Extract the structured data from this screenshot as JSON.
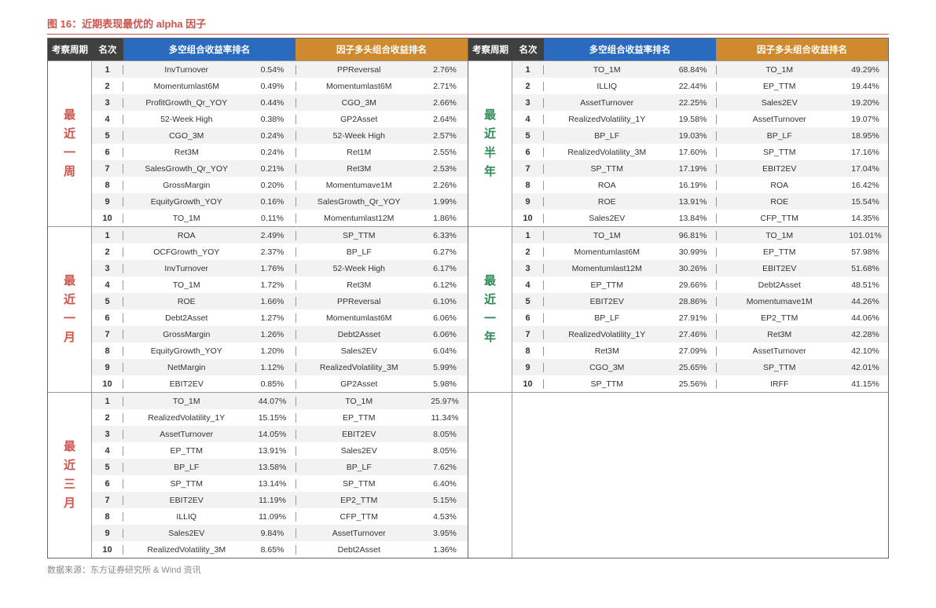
{
  "title_prefix": "图 16：",
  "title_text": "近期表现最优的 alpha 因子",
  "source_label": "数据来源：",
  "source_text": "东方证券研究所 & Wind 资讯",
  "headers": {
    "period": "考察周期",
    "rank": "名次",
    "ls": "多空组合收益率排名",
    "long": "因子多头组合收益排名"
  },
  "colors": {
    "accent_red": "#d0534e",
    "header_dark": "#404040",
    "header_blue": "#2a6bbf",
    "header_orange": "#d08a2e",
    "period_green": "#2e8b57",
    "row_odd": "#f2f2f2",
    "row_even": "#ffffff",
    "grid": "#999999",
    "source_grey": "#888888"
  },
  "left": [
    {
      "period_label": "最近一周",
      "period_color_class": "period-red",
      "rows": [
        {
          "rank": "1",
          "ls_f": "InvTurnover",
          "ls_v": "0.54%",
          "lg_f": "PPReversal",
          "lg_v": "2.76%"
        },
        {
          "rank": "2",
          "ls_f": "Momentumlast6M",
          "ls_v": "0.49%",
          "lg_f": "Momentumlast6M",
          "lg_v": "2.71%"
        },
        {
          "rank": "3",
          "ls_f": "ProfitGrowth_Qr_YOY",
          "ls_v": "0.44%",
          "lg_f": "CGO_3M",
          "lg_v": "2.66%"
        },
        {
          "rank": "4",
          "ls_f": "52-Week High",
          "ls_v": "0.38%",
          "lg_f": "GP2Asset",
          "lg_v": "2.64%"
        },
        {
          "rank": "5",
          "ls_f": "CGO_3M",
          "ls_v": "0.24%",
          "lg_f": "52-Week High",
          "lg_v": "2.57%"
        },
        {
          "rank": "6",
          "ls_f": "Ret3M",
          "ls_v": "0.24%",
          "lg_f": "Ret1M",
          "lg_v": "2.55%"
        },
        {
          "rank": "7",
          "ls_f": "SalesGrowth_Qr_YOY",
          "ls_v": "0.21%",
          "lg_f": "Ret3M",
          "lg_v": "2.53%"
        },
        {
          "rank": "8",
          "ls_f": "GrossMargin",
          "ls_v": "0.20%",
          "lg_f": "Momentumave1M",
          "lg_v": "2.26%"
        },
        {
          "rank": "9",
          "ls_f": "EquityGrowth_YOY",
          "ls_v": "0.16%",
          "lg_f": "SalesGrowth_Qr_YOY",
          "lg_v": "1.99%"
        },
        {
          "rank": "10",
          "ls_f": "TO_1M",
          "ls_v": "0.11%",
          "lg_f": "Momentumlast12M",
          "lg_v": "1.86%"
        }
      ]
    },
    {
      "period_label": "最近一月",
      "period_color_class": "period-red",
      "rows": [
        {
          "rank": "1",
          "ls_f": "ROA",
          "ls_v": "2.49%",
          "lg_f": "SP_TTM",
          "lg_v": "6.33%"
        },
        {
          "rank": "2",
          "ls_f": "OCFGrowth_YOY",
          "ls_v": "2.37%",
          "lg_f": "BP_LF",
          "lg_v": "6.27%"
        },
        {
          "rank": "3",
          "ls_f": "InvTurnover",
          "ls_v": "1.76%",
          "lg_f": "52-Week High",
          "lg_v": "6.17%"
        },
        {
          "rank": "4",
          "ls_f": "TO_1M",
          "ls_v": "1.72%",
          "lg_f": "Ret3M",
          "lg_v": "6.12%"
        },
        {
          "rank": "5",
          "ls_f": "ROE",
          "ls_v": "1.66%",
          "lg_f": "PPReversal",
          "lg_v": "6.10%"
        },
        {
          "rank": "6",
          "ls_f": "Debt2Asset",
          "ls_v": "1.27%",
          "lg_f": "Momentumlast6M",
          "lg_v": "6.06%"
        },
        {
          "rank": "7",
          "ls_f": "GrossMargin",
          "ls_v": "1.26%",
          "lg_f": "Debt2Asset",
          "lg_v": "6.06%"
        },
        {
          "rank": "8",
          "ls_f": "EquityGrowth_YOY",
          "ls_v": "1.20%",
          "lg_f": "Sales2EV",
          "lg_v": "6.04%"
        },
        {
          "rank": "9",
          "ls_f": "NetMargin",
          "ls_v": "1.12%",
          "lg_f": "RealizedVolatility_3M",
          "lg_v": "5.99%"
        },
        {
          "rank": "10",
          "ls_f": "EBIT2EV",
          "ls_v": "0.85%",
          "lg_f": "GP2Asset",
          "lg_v": "5.98%"
        }
      ]
    },
    {
      "period_label": "最近三月",
      "period_color_class": "period-red",
      "rows": [
        {
          "rank": "1",
          "ls_f": "TO_1M",
          "ls_v": "44.07%",
          "lg_f": "TO_1M",
          "lg_v": "25.97%"
        },
        {
          "rank": "2",
          "ls_f": "RealizedVolatility_1Y",
          "ls_v": "15.15%",
          "lg_f": "EP_TTM",
          "lg_v": "11.34%"
        },
        {
          "rank": "3",
          "ls_f": "AssetTurnover",
          "ls_v": "14.05%",
          "lg_f": "EBIT2EV",
          "lg_v": "8.05%"
        },
        {
          "rank": "4",
          "ls_f": "EP_TTM",
          "ls_v": "13.91%",
          "lg_f": "Sales2EV",
          "lg_v": "8.05%"
        },
        {
          "rank": "5",
          "ls_f": "BP_LF",
          "ls_v": "13.58%",
          "lg_f": "BP_LF",
          "lg_v": "7.62%"
        },
        {
          "rank": "6",
          "ls_f": "SP_TTM",
          "ls_v": "13.14%",
          "lg_f": "SP_TTM",
          "lg_v": "6.40%"
        },
        {
          "rank": "7",
          "ls_f": "EBIT2EV",
          "ls_v": "11.19%",
          "lg_f": "EP2_TTM",
          "lg_v": "5.15%"
        },
        {
          "rank": "8",
          "ls_f": "ILLIQ",
          "ls_v": "11.09%",
          "lg_f": "CFP_TTM",
          "lg_v": "4.53%"
        },
        {
          "rank": "9",
          "ls_f": "Sales2EV",
          "ls_v": "9.84%",
          "lg_f": "AssetTurnover",
          "lg_v": "3.95%"
        },
        {
          "rank": "10",
          "ls_f": "RealizedVolatility_3M",
          "ls_v": "8.65%",
          "lg_f": "Debt2Asset",
          "lg_v": "1.36%"
        }
      ]
    }
  ],
  "right": [
    {
      "period_label": "最近半年",
      "period_color_class": "period-green",
      "rows": [
        {
          "rank": "1",
          "ls_f": "TO_1M",
          "ls_v": "68.84%",
          "lg_f": "TO_1M",
          "lg_v": "49.29%"
        },
        {
          "rank": "2",
          "ls_f": "ILLIQ",
          "ls_v": "22.44%",
          "lg_f": "EP_TTM",
          "lg_v": "19.44%"
        },
        {
          "rank": "3",
          "ls_f": "AssetTurnover",
          "ls_v": "22.25%",
          "lg_f": "Sales2EV",
          "lg_v": "19.20%"
        },
        {
          "rank": "4",
          "ls_f": "RealizedVolatility_1Y",
          "ls_v": "19.58%",
          "lg_f": "AssetTurnover",
          "lg_v": "19.07%"
        },
        {
          "rank": "5",
          "ls_f": "BP_LF",
          "ls_v": "19.03%",
          "lg_f": "BP_LF",
          "lg_v": "18.95%"
        },
        {
          "rank": "6",
          "ls_f": "RealizedVolatility_3M",
          "ls_v": "17.60%",
          "lg_f": "SP_TTM",
          "lg_v": "17.16%"
        },
        {
          "rank": "7",
          "ls_f": "SP_TTM",
          "ls_v": "17.19%",
          "lg_f": "EBIT2EV",
          "lg_v": "17.04%"
        },
        {
          "rank": "8",
          "ls_f": "ROA",
          "ls_v": "16.19%",
          "lg_f": "ROA",
          "lg_v": "16.42%"
        },
        {
          "rank": "9",
          "ls_f": "ROE",
          "ls_v": "13.91%",
          "lg_f": "ROE",
          "lg_v": "15.54%"
        },
        {
          "rank": "10",
          "ls_f": "Sales2EV",
          "ls_v": "13.84%",
          "lg_f": "CFP_TTM",
          "lg_v": "14.35%"
        }
      ]
    },
    {
      "period_label": "最近一年",
      "period_color_class": "period-green",
      "rows": [
        {
          "rank": "1",
          "ls_f": "TO_1M",
          "ls_v": "96.81%",
          "lg_f": "TO_1M",
          "lg_v": "101.01%"
        },
        {
          "rank": "2",
          "ls_f": "Momentumlast6M",
          "ls_v": "30.99%",
          "lg_f": "EP_TTM",
          "lg_v": "57.98%"
        },
        {
          "rank": "3",
          "ls_f": "Momentumlast12M",
          "ls_v": "30.26%",
          "lg_f": "EBIT2EV",
          "lg_v": "51.68%"
        },
        {
          "rank": "4",
          "ls_f": "EP_TTM",
          "ls_v": "29.66%",
          "lg_f": "Debt2Asset",
          "lg_v": "48.51%"
        },
        {
          "rank": "5",
          "ls_f": "EBIT2EV",
          "ls_v": "28.86%",
          "lg_f": "Momentumave1M",
          "lg_v": "44.26%"
        },
        {
          "rank": "6",
          "ls_f": "BP_LF",
          "ls_v": "27.91%",
          "lg_f": "EP2_TTM",
          "lg_v": "44.06%"
        },
        {
          "rank": "7",
          "ls_f": "RealizedVolatility_1Y",
          "ls_v": "27.46%",
          "lg_f": "Ret3M",
          "lg_v": "42.28%"
        },
        {
          "rank": "8",
          "ls_f": "Ret3M",
          "ls_v": "27.09%",
          "lg_f": "AssetTurnover",
          "lg_v": "42.10%"
        },
        {
          "rank": "9",
          "ls_f": "CGO_3M",
          "ls_v": "25.65%",
          "lg_f": "SP_TTM",
          "lg_v": "42.01%"
        },
        {
          "rank": "10",
          "ls_f": "SP_TTM",
          "ls_v": "25.56%",
          "lg_f": "IRFF",
          "lg_v": "41.15%"
        }
      ]
    },
    {
      "period_label": "",
      "period_color_class": "period-green",
      "blank": true,
      "rows": [
        {
          "rank": "",
          "ls_f": "",
          "ls_v": "",
          "lg_f": "",
          "lg_v": ""
        },
        {
          "rank": "",
          "ls_f": "",
          "ls_v": "",
          "lg_f": "",
          "lg_v": ""
        },
        {
          "rank": "",
          "ls_f": "",
          "ls_v": "",
          "lg_f": "",
          "lg_v": ""
        },
        {
          "rank": "",
          "ls_f": "",
          "ls_v": "",
          "lg_f": "",
          "lg_v": ""
        },
        {
          "rank": "",
          "ls_f": "",
          "ls_v": "",
          "lg_f": "",
          "lg_v": ""
        },
        {
          "rank": "",
          "ls_f": "",
          "ls_v": "",
          "lg_f": "",
          "lg_v": ""
        },
        {
          "rank": "",
          "ls_f": "",
          "ls_v": "",
          "lg_f": "",
          "lg_v": ""
        },
        {
          "rank": "",
          "ls_f": "",
          "ls_v": "",
          "lg_f": "",
          "lg_v": ""
        },
        {
          "rank": "",
          "ls_f": "",
          "ls_v": "",
          "lg_f": "",
          "lg_v": ""
        },
        {
          "rank": "",
          "ls_f": "",
          "ls_v": "",
          "lg_f": "",
          "lg_v": ""
        }
      ]
    }
  ]
}
